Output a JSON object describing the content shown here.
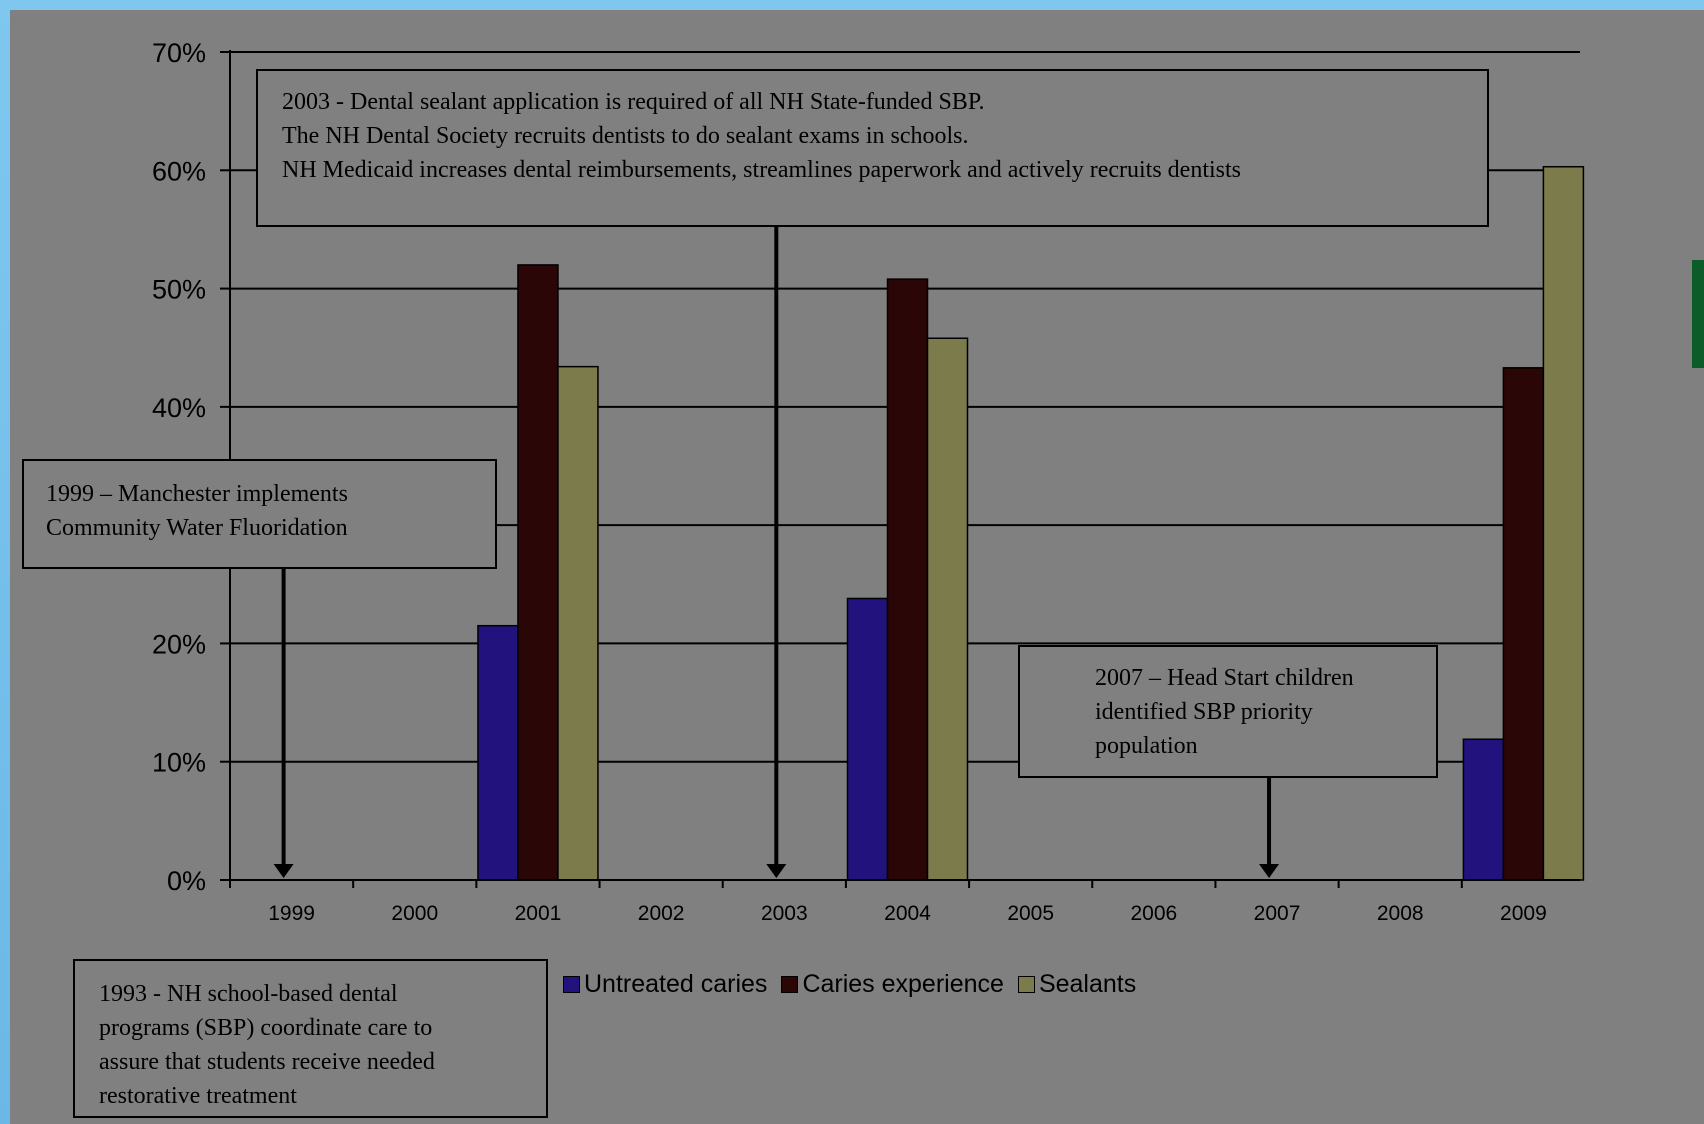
{
  "chart_data": {
    "type": "bar",
    "categories": [
      "1999",
      "2000",
      "2001",
      "2002",
      "2003",
      "2004",
      "2005",
      "2006",
      "2007",
      "2008",
      "2009"
    ],
    "series": [
      {
        "name": "Untreated caries",
        "color": "#22127e",
        "values": [
          null,
          null,
          21.5,
          null,
          null,
          23.8,
          null,
          null,
          null,
          null,
          11.9
        ]
      },
      {
        "name": "Caries experience",
        "color": "#2a0606",
        "values": [
          null,
          null,
          52,
          null,
          null,
          50.8,
          null,
          null,
          null,
          null,
          43.3
        ]
      },
      {
        "name": "Sealants",
        "color": "#7b7b4b",
        "values": [
          null,
          null,
          43.4,
          null,
          null,
          45.8,
          null,
          null,
          null,
          null,
          60.3
        ]
      }
    ],
    "yticks": [
      "0%",
      "10%",
      "20%",
      "",
      "40%",
      "50%",
      "60%",
      "70%"
    ],
    "ylim": [
      0,
      70
    ],
    "grid": true,
    "legend_position": "bottom",
    "annotations": [
      {
        "id": "note1999",
        "arrow_category": "1999",
        "text": "1999 – Manchester implements\nCommunity Water Fluoridation"
      },
      {
        "id": "note2003",
        "arrow_category": "2003",
        "text": "2003 - Dental sealant application is required of all NH State-funded SBP.\nThe NH Dental Society recruits dentists to do sealant exams in schools.\nNH Medicaid increases dental reimbursements, streamlines paperwork and actively recruits dentists"
      },
      {
        "id": "note2007",
        "arrow_category": "2007",
        "text": "2007 – Head Start children\nidentified SBP priority\npopulation"
      },
      {
        "id": "note1993",
        "arrow_category": null,
        "text": "1993 - NH school-based dental\nprograms (SBP) coordinate care to\nassure that students receive needed\nrestorative treatment"
      }
    ]
  }
}
